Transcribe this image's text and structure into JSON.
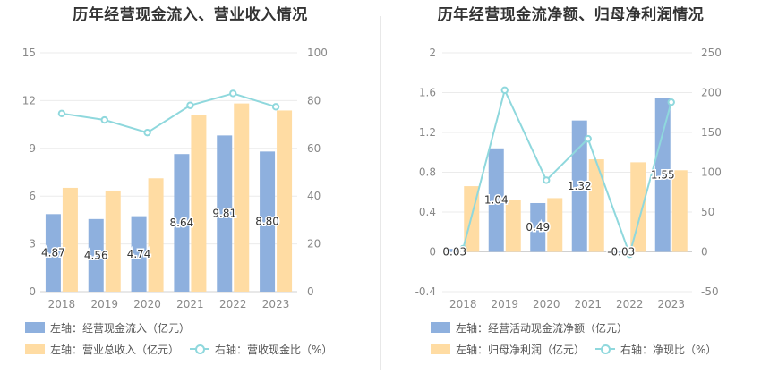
{
  "chart_data": [
    {
      "type": "bar",
      "title": "历年经营现金流入、营业收入情况",
      "categories": [
        "2018",
        "2019",
        "2020",
        "2021",
        "2022",
        "2023"
      ],
      "left_axis": {
        "ylim": [
          0,
          15
        ],
        "ticks": [
          "0",
          "3",
          "6",
          "9",
          "12",
          "15"
        ]
      },
      "right_axis": {
        "ylim": [
          0,
          100
        ],
        "ticks": [
          "0",
          "20",
          "40",
          "60",
          "80",
          "100"
        ]
      },
      "series": [
        {
          "name": "左轴：经营现金流入（亿元）",
          "kind": "bar",
          "axis": "left",
          "color": "#8eb0de",
          "values": [
            4.87,
            4.56,
            4.74,
            8.64,
            9.81,
            8.8
          ],
          "labels": [
            "4.87",
            "4.56",
            "4.74",
            "8.64",
            "9.81",
            "8.80"
          ]
        },
        {
          "name": "左轴：营业总收入（亿元）",
          "kind": "bar",
          "axis": "left",
          "color": "#ffdca3",
          "values": [
            6.52,
            6.35,
            7.12,
            11.08,
            11.82,
            11.38
          ]
        },
        {
          "name": "右轴：营收现金比（%）",
          "kind": "line",
          "axis": "right",
          "color": "#8fd8dd",
          "values": [
            74.6,
            71.9,
            66.6,
            78.0,
            83.0,
            77.4
          ]
        }
      ],
      "grid": true,
      "legend": "bottom"
    },
    {
      "type": "bar",
      "title": "历年经营现金流净额、归母净利润情况",
      "categories": [
        "2018",
        "2019",
        "2020",
        "2021",
        "2022",
        "2023"
      ],
      "left_axis": {
        "ylim": [
          -0.4,
          2
        ],
        "ticks": [
          "-0.4",
          "0",
          "0.4",
          "0.8",
          "1.2",
          "1.6",
          "2"
        ]
      },
      "right_axis": {
        "ylim": [
          -50,
          250
        ],
        "ticks": [
          "-50",
          "0",
          "50",
          "100",
          "150",
          "200",
          "250"
        ]
      },
      "series": [
        {
          "name": "左轴：经营活动现金流净额（亿元）",
          "kind": "bar",
          "axis": "left",
          "color": "#8eb0de",
          "values": [
            0.03,
            1.04,
            0.49,
            1.32,
            -0.03,
            1.55
          ],
          "labels": [
            "0.03",
            "1.04",
            "0.49",
            "1.32",
            "-0.03",
            "1.55"
          ]
        },
        {
          "name": "左轴：归母净利润（亿元）",
          "kind": "bar",
          "axis": "left",
          "color": "#ffdca3",
          "values": [
            0.66,
            0.52,
            0.54,
            0.93,
            0.9,
            0.82
          ]
        },
        {
          "name": "右轴：净现比（%）",
          "kind": "line",
          "axis": "right",
          "color": "#8fd8dd",
          "values": [
            4,
            203,
            90,
            142,
            -3,
            188
          ]
        }
      ],
      "grid": true,
      "legend": "bottom"
    }
  ]
}
